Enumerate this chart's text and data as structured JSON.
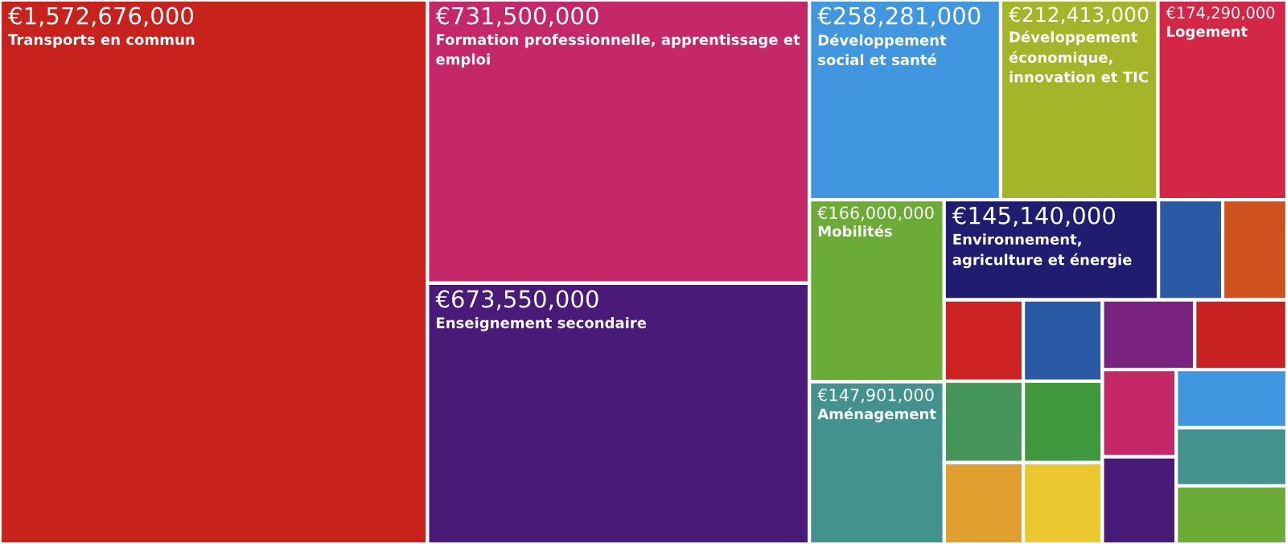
{
  "chart_data": {
    "type": "other",
    "categories": [
      "Transports en commun",
      "Formation professionnelle, apprentissage et emploi",
      "Enseignement secondaire",
      "Développement social et santé",
      "Développement économique, innovation et TIC",
      "Logement",
      "Mobilités",
      "Aménagement",
      "Environnement, agriculture et énergie",
      null,
      null,
      null,
      null,
      null,
      null,
      null,
      null,
      null,
      null,
      null,
      null,
      null,
      null,
      null
    ],
    "values": [
      1572676000,
      731500000,
      673550000,
      258281000,
      212413000,
      174290000,
      166000000,
      147901000,
      145140000,
      null,
      null,
      null,
      null,
      null,
      null,
      null,
      null,
      null,
      null,
      null,
      null,
      null,
      null,
      null
    ],
    "value_labels": [
      "€1,572,676,000",
      "€731,500,000",
      "€673,550,000",
      "€258,281,000",
      "€212,413,000",
      "€174,290,000",
      "€166,000,000",
      "€147,901,000",
      "€145,140,000",
      null,
      null,
      null,
      null,
      null,
      null,
      null,
      null,
      null,
      null,
      null,
      null,
      null,
      null,
      null
    ],
    "colors": [
      "#c8221c",
      "#c42868",
      "#4a1a78",
      "#4196e0",
      "#a5b52a",
      "#d42645",
      "#6aac35",
      "#42928e",
      "#201c70",
      "#2a5aa6",
      "#d0521e",
      "#cc2222",
      "#459658",
      "#e0a030",
      "#2a5aa6",
      "#40983c",
      "#ecc830",
      "#7a2280",
      "#c82222",
      "#c42868",
      "#4a1a78",
      "#4196e0",
      "#42928e",
      "#6aac35"
    ]
  }
}
